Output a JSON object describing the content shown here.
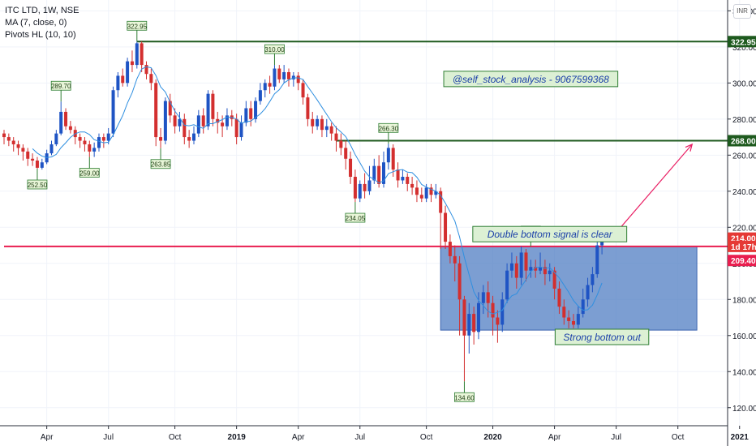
{
  "legend": {
    "title": "ITC LTD, 1W, NSE",
    "ma": "MA (7, close, 0)",
    "pivots": "Pivots HL (10, 10)"
  },
  "currency_button": "INR",
  "colors": {
    "up": "#1f54c4",
    "down": "#d32f2f",
    "ma_line": "#2f8fe0",
    "green_line": "#1e5a1e",
    "red_line": "#e91e4f",
    "box_fill": "#4a78c0",
    "note_bg": "#dcf0d4",
    "note_border": "#2e7d32"
  },
  "chart_data": {
    "type": "candlestick",
    "yaxis": {
      "ticks": [
        120,
        140,
        160,
        180,
        200,
        220,
        240,
        260,
        280,
        300,
        320,
        340
      ],
      "min": 110,
      "max": 346
    },
    "xaxis": {
      "ticks": [
        {
          "label": "Apr",
          "week": 9
        },
        {
          "label": "Jul",
          "week": 22
        },
        {
          "label": "Oct",
          "week": 36
        },
        {
          "label": "2019",
          "week": 49
        },
        {
          "label": "Apr",
          "week": 62
        },
        {
          "label": "Jul",
          "week": 75
        },
        {
          "label": "Oct",
          "week": 89
        },
        {
          "label": "2020",
          "week": 103
        },
        {
          "label": "Apr",
          "week": 116
        },
        {
          "label": "Jul",
          "week": 129
        },
        {
          "label": "Oct",
          "week": 142
        },
        {
          "label": "2021",
          "week": 155
        }
      ]
    },
    "candles": [
      [
        272,
        270,
        274,
        266
      ],
      [
        270,
        268,
        272,
        265
      ],
      [
        268,
        266,
        270,
        262
      ],
      [
        266,
        264,
        268,
        260
      ],
      [
        264,
        262,
        266,
        257
      ],
      [
        262,
        258,
        264,
        254
      ],
      [
        258,
        257,
        261,
        254
      ],
      [
        257,
        253,
        259,
        252.5
      ],
      [
        253,
        256,
        258,
        252
      ],
      [
        256,
        261,
        263,
        255
      ],
      [
        261,
        266,
        268,
        260
      ],
      [
        266,
        272,
        274,
        265
      ],
      [
        272,
        284,
        289.7,
        271
      ],
      [
        284,
        276,
        286,
        274
      ],
      [
        276,
        274,
        279,
        272
      ],
      [
        274,
        270,
        276,
        266
      ],
      [
        270,
        268,
        272,
        264
      ],
      [
        268,
        266,
        270,
        262
      ],
      [
        266,
        262,
        268,
        259
      ],
      [
        262,
        264,
        267,
        259
      ],
      [
        264,
        270,
        272,
        262
      ],
      [
        270,
        268,
        272,
        264
      ],
      [
        268,
        272,
        275,
        266
      ],
      [
        272,
        296,
        298,
        270
      ],
      [
        296,
        304,
        306,
        292
      ],
      [
        304,
        300,
        308,
        298
      ],
      [
        300,
        312,
        314,
        298
      ],
      [
        312,
        310,
        318,
        306
      ],
      [
        310,
        322,
        322.95,
        308
      ],
      [
        322,
        310,
        323,
        306
      ],
      [
        310,
        305,
        312,
        302
      ],
      [
        305,
        300,
        308,
        296
      ],
      [
        300,
        270,
        302,
        265
      ],
      [
        270,
        268,
        275,
        263.85
      ],
      [
        268,
        290,
        292,
        266
      ],
      [
        290,
        282,
        294,
        278
      ],
      [
        282,
        276,
        286,
        272
      ],
      [
        276,
        280,
        284,
        273
      ],
      [
        280,
        270,
        283,
        266
      ],
      [
        270,
        268,
        274,
        264
      ],
      [
        268,
        272,
        276,
        266
      ],
      [
        272,
        282,
        285,
        270
      ],
      [
        282,
        276,
        286,
        272
      ],
      [
        276,
        294,
        296,
        274
      ],
      [
        294,
        280,
        296,
        276
      ],
      [
        280,
        278,
        284,
        272
      ],
      [
        278,
        276,
        282,
        270
      ],
      [
        276,
        282,
        286,
        274
      ],
      [
        282,
        280,
        285,
        276
      ],
      [
        280,
        270,
        283,
        266
      ],
      [
        270,
        278,
        282,
        268
      ],
      [
        278,
        286,
        290,
        276
      ],
      [
        286,
        280,
        290,
        276
      ],
      [
        280,
        290,
        292,
        278
      ],
      [
        290,
        296,
        300,
        288
      ],
      [
        296,
        300,
        302,
        292
      ],
      [
        300,
        298,
        304,
        294
      ],
      [
        298,
        308,
        310,
        296
      ],
      [
        308,
        302,
        310,
        300
      ],
      [
        302,
        306,
        310,
        300
      ],
      [
        306,
        302,
        308,
        298
      ],
      [
        302,
        304,
        306,
        298
      ],
      [
        304,
        300,
        306,
        296
      ],
      [
        300,
        292,
        302,
        288
      ],
      [
        292,
        280,
        294,
        276
      ],
      [
        280,
        276,
        284,
        272
      ],
      [
        276,
        280,
        282,
        274
      ],
      [
        280,
        274,
        282,
        270
      ],
      [
        274,
        276,
        280,
        270
      ],
      [
        276,
        272,
        278,
        268
      ],
      [
        272,
        268,
        276,
        262
      ],
      [
        268,
        264,
        272,
        260
      ],
      [
        264,
        258,
        268,
        252
      ],
      [
        258,
        248,
        262,
        244
      ],
      [
        248,
        236,
        252,
        234.05
      ],
      [
        236,
        244,
        246,
        234
      ],
      [
        244,
        240,
        250,
        236
      ],
      [
        240,
        246,
        254,
        238
      ],
      [
        246,
        254,
        258,
        244
      ],
      [
        254,
        244,
        260,
        242
      ],
      [
        244,
        256,
        262,
        242
      ],
      [
        256,
        264,
        266.3,
        252
      ],
      [
        264,
        252,
        266,
        248
      ],
      [
        252,
        246,
        256,
        242
      ],
      [
        246,
        248,
        252,
        244
      ],
      [
        248,
        244,
        250,
        240
      ],
      [
        244,
        242,
        248,
        238
      ],
      [
        242,
        238,
        246,
        234
      ],
      [
        238,
        236,
        242,
        234
      ],
      [
        236,
        242,
        244,
        234
      ],
      [
        242,
        238,
        244,
        234
      ],
      [
        238,
        240,
        244,
        236
      ],
      [
        240,
        228,
        242,
        208
      ],
      [
        228,
        212,
        232,
        208
      ],
      [
        212,
        204,
        216,
        200
      ],
      [
        204,
        200,
        210,
        190
      ],
      [
        200,
        180,
        204,
        160
      ],
      [
        180,
        160,
        182,
        134.6
      ],
      [
        160,
        172,
        178,
        150
      ],
      [
        172,
        162,
        176,
        155
      ],
      [
        162,
        178,
        184,
        158
      ],
      [
        178,
        184,
        188,
        172
      ],
      [
        184,
        178,
        190,
        170
      ],
      [
        178,
        170,
        182,
        160
      ],
      [
        170,
        166,
        174,
        156
      ],
      [
        166,
        180,
        184,
        162
      ],
      [
        180,
        196,
        200,
        178
      ],
      [
        196,
        200,
        206,
        192
      ],
      [
        200,
        192,
        204,
        186
      ],
      [
        192,
        206,
        209.4,
        188
      ],
      [
        206,
        196,
        208,
        190
      ],
      [
        196,
        198,
        202,
        192
      ],
      [
        198,
        196,
        202,
        192
      ],
      [
        196,
        198,
        206,
        194
      ],
      [
        198,
        194,
        202,
        188
      ],
      [
        194,
        196,
        200,
        190
      ],
      [
        196,
        186,
        198,
        180
      ],
      [
        186,
        176,
        190,
        172
      ],
      [
        176,
        170,
        180,
        166
      ],
      [
        170,
        168,
        174,
        164
      ],
      [
        168,
        166,
        172,
        164
      ],
      [
        166,
        172,
        176,
        164
      ],
      [
        172,
        180,
        186,
        170
      ],
      [
        180,
        188,
        192,
        176
      ],
      [
        188,
        194,
        198,
        184
      ],
      [
        194,
        210,
        214,
        192
      ],
      [
        210,
        214,
        216,
        205
      ]
    ],
    "moving_average": "MA 7",
    "pivots": [
      {
        "type": "low",
        "week": 7,
        "value": 252.5,
        "label": "252.50"
      },
      {
        "type": "high",
        "week": 12,
        "value": 289.7,
        "label": "289.70"
      },
      {
        "type": "low",
        "week": 18,
        "value": 259.0,
        "label": "259.00"
      },
      {
        "type": "high",
        "week": 28,
        "value": 322.95,
        "label": "322.95"
      },
      {
        "type": "low",
        "week": 33,
        "value": 263.85,
        "label": "263.85"
      },
      {
        "type": "high",
        "week": 57,
        "value": 310.0,
        "label": "310.00"
      },
      {
        "type": "low",
        "week": 74,
        "value": 234.05,
        "label": "234.05"
      },
      {
        "type": "high",
        "week": 81,
        "value": 266.3,
        "label": "266.30"
      },
      {
        "type": "low",
        "week": 97,
        "value": 134.6,
        "label": "134.60"
      },
      {
        "type": "high",
        "week": 111,
        "value": 209.4,
        "label": "209.40"
      }
    ],
    "horizontal_lines": [
      {
        "value": 322.95,
        "label": "322.95",
        "color": "#1e5a1e",
        "from_week": 28
      },
      {
        "value": 268.0,
        "label": "268.00",
        "color": "#1e5a1e",
        "from_week": 70
      },
      {
        "value": 209.4,
        "label": "209.40",
        "color": "#e91e4f",
        "from_week": 0
      }
    ],
    "price_tags": [
      {
        "value": 214.0,
        "label": "214.00",
        "color": "#e53935"
      },
      {
        "value": 209.4,
        "label": "1d 17h",
        "color": "#e53935"
      },
      {
        "value": 201.6,
        "label": "209.40",
        "color": "#e91e4f"
      }
    ],
    "box": {
      "from_week": 92,
      "to_week": 146,
      "top": 209.4,
      "bottom": 163
    },
    "arrow": {
      "from_week": 128,
      "from_value": 214,
      "to_week": 145,
      "to_value": 266
    },
    "annotations": [
      {
        "text": "@self_stock_analysis - 9067599368",
        "week": 111,
        "value": 302
      },
      {
        "text": "Double bottom signal is clear",
        "week": 115,
        "value": 216
      },
      {
        "text": "Strong bottom out",
        "week": 126,
        "value": 159
      }
    ]
  }
}
